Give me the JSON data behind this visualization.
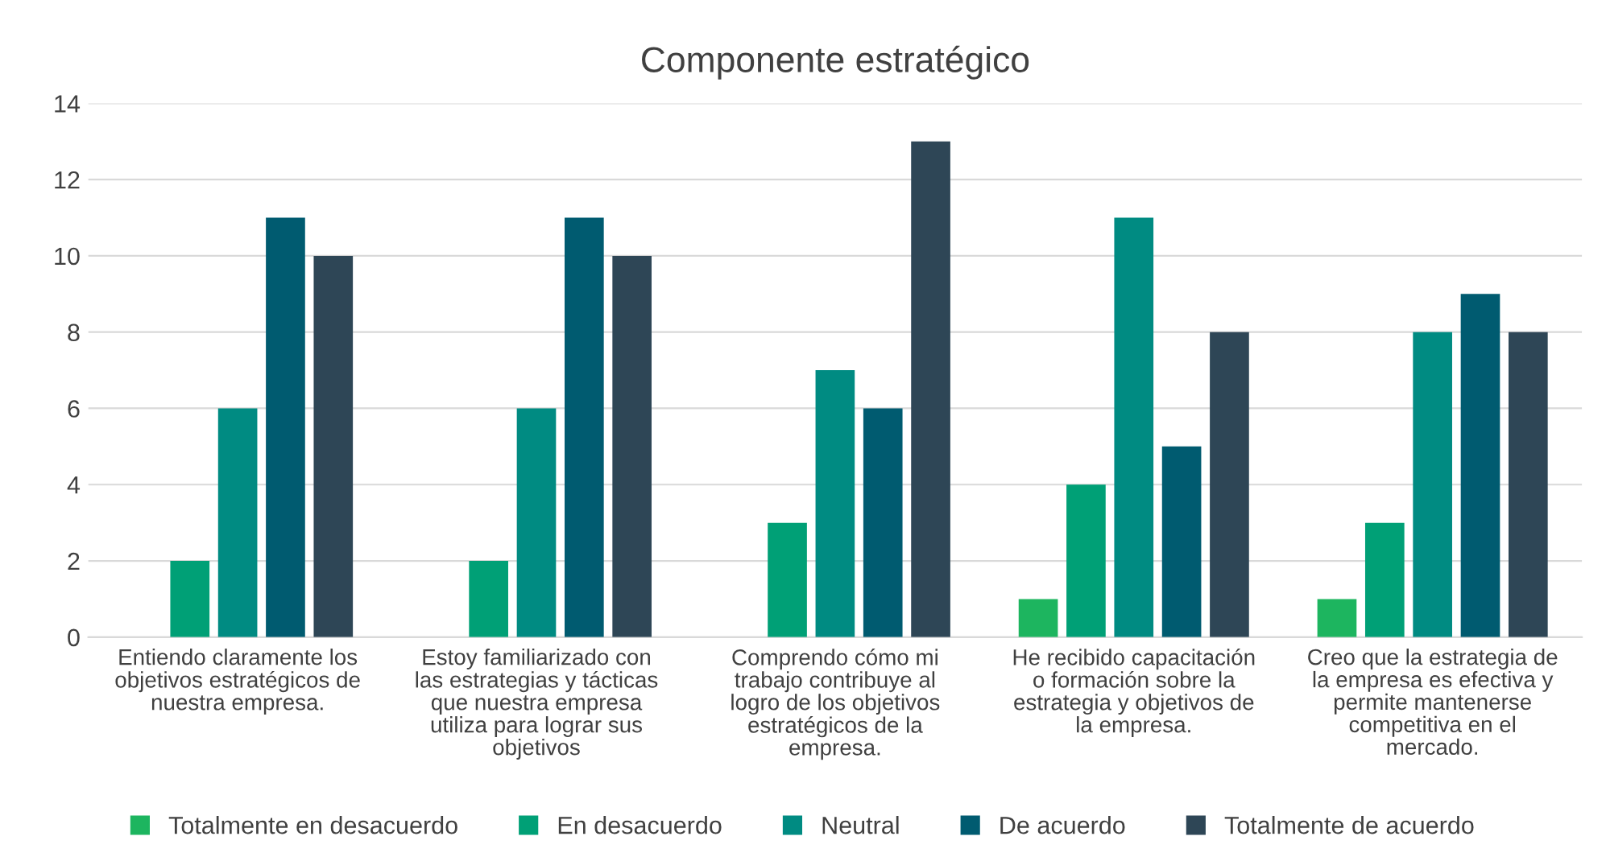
{
  "chart_data": {
    "type": "bar",
    "title": "Componente estratégico",
    "categories": [
      "Entiendo claramente los\nobjetivos estratégicos de\nnuestra empresa.",
      "Estoy familiarizado con\nlas estrategias y tácticas\nque nuestra empresa\nutiliza para lograr sus\nobjetivos",
      "Comprendo cómo mi\ntrabajo contribuye al\nlogro de los objetivos\nestratégicos de la\nempresa.",
      "He recibido capacitación\no formación sobre la\nestrategia y objetivos de\nla empresa.",
      "Creo que la estrategia de\nla empresa es efectiva y\npermite mantenerse\ncompetitiva en el\nmercado."
    ],
    "series": [
      {
        "name": "Totalmente en desacuerdo",
        "color": "#1db55f",
        "values": [
          0,
          0,
          0,
          1,
          1
        ]
      },
      {
        "name": "En desacuerdo",
        "color": "#00a076",
        "values": [
          2,
          2,
          3,
          4,
          3
        ]
      },
      {
        "name": "Neutral",
        "color": "#008b82",
        "values": [
          6,
          6,
          7,
          11,
          8
        ]
      },
      {
        "name": "De acuerdo",
        "color": "#005b70",
        "values": [
          11,
          11,
          6,
          5,
          9
        ]
      },
      {
        "name": "Totalmente de acuerdo",
        "color": "#2e4656",
        "values": [
          10,
          10,
          13,
          8,
          8
        ]
      }
    ],
    "ylim": [
      0,
      14
    ],
    "yticks": [
      0,
      2,
      4,
      6,
      8,
      10,
      12,
      14
    ],
    "grid": "y",
    "legend": "bottom"
  }
}
